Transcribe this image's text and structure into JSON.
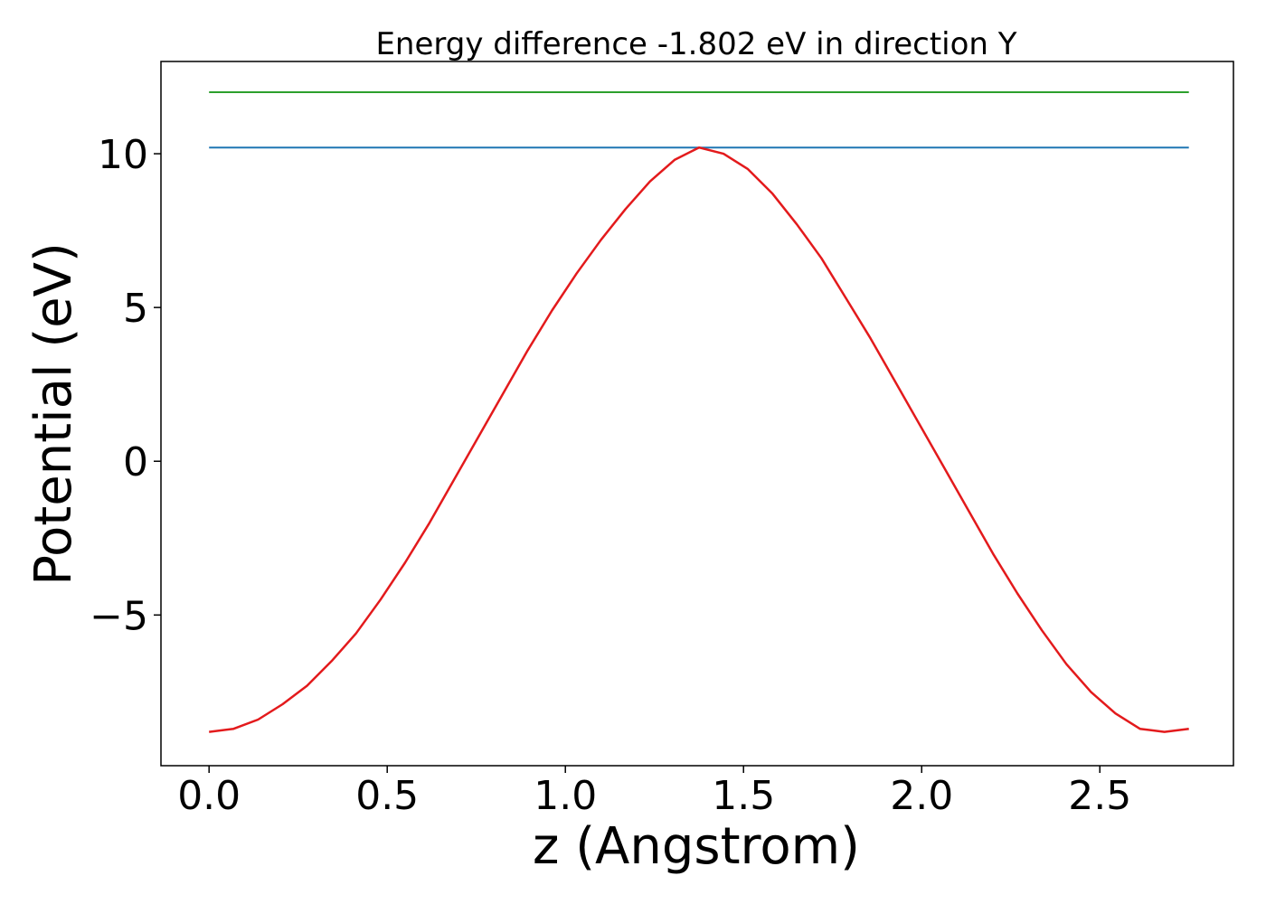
{
  "chart_data": {
    "type": "line",
    "title": "Energy difference -1.802 eV in direction Y",
    "xlabel": "z (Angstrom)",
    "ylabel": "Potential (eV)",
    "xlim": [
      -0.135,
      2.875
    ],
    "ylim": [
      -9.9,
      13.0
    ],
    "xticks": [
      0.0,
      0.5,
      1.0,
      1.5,
      2.0,
      2.5
    ],
    "xtick_labels": [
      "0.0",
      "0.5",
      "1.0",
      "1.5",
      "2.0",
      "2.5"
    ],
    "yticks": [
      -5,
      0,
      5,
      10
    ],
    "ytick_labels": [
      "−5",
      "0",
      "5",
      "10"
    ],
    "grid": false,
    "series": [
      {
        "color": "#2ca02c",
        "x": [
          0.0,
          2.75
        ],
        "y": [
          12.0,
          12.0
        ]
      },
      {
        "color": "#1f77b4",
        "x": [
          0.0,
          2.75
        ],
        "y": [
          10.2,
          10.2
        ]
      },
      {
        "color": "#e31a1c",
        "x": [
          0.0,
          0.0688,
          0.1375,
          0.2063,
          0.275,
          0.3438,
          0.4125,
          0.4813,
          0.55,
          0.6188,
          0.6875,
          0.7563,
          0.825,
          0.8938,
          0.9625,
          1.0313,
          1.1,
          1.1688,
          1.2375,
          1.3063,
          1.375,
          1.4438,
          1.5125,
          1.5813,
          1.65,
          1.7188,
          1.7875,
          1.8563,
          1.925,
          1.9938,
          2.0625,
          2.1313,
          2.2,
          2.2688,
          2.3375,
          2.4063,
          2.475,
          2.5438,
          2.6125,
          2.6813,
          2.75
        ],
        "y": [
          -8.8,
          -8.7,
          -8.4,
          -7.9,
          -7.3,
          -6.5,
          -5.6,
          -4.5,
          -3.3,
          -2.0,
          -0.6,
          0.8,
          2.2,
          3.6,
          4.9,
          6.1,
          7.2,
          8.2,
          9.1,
          9.8,
          10.2,
          10.0,
          9.5,
          8.7,
          7.7,
          6.6,
          5.3,
          4.0,
          2.6,
          1.2,
          -0.2,
          -1.6,
          -3.0,
          -4.3,
          -5.5,
          -6.6,
          -7.5,
          -8.2,
          -8.7,
          -8.8,
          -8.7
        ]
      }
    ]
  }
}
